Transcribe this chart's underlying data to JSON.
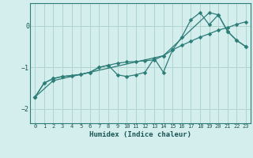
{
  "xlabel": "Humidex (Indice chaleur)",
  "bg_color": "#d4eeed",
  "grid_color": "#aed4d0",
  "line_color": "#2d7d78",
  "xlim": [
    -0.5,
    23.5
  ],
  "ylim": [
    -2.35,
    0.55
  ],
  "yticks": [
    0,
    -1,
    -2
  ],
  "xticks": [
    0,
    1,
    2,
    3,
    4,
    5,
    6,
    7,
    8,
    9,
    10,
    11,
    12,
    13,
    14,
    15,
    16,
    17,
    18,
    19,
    20,
    21,
    22,
    23
  ],
  "line1_x": [
    0,
    1,
    2,
    3,
    4,
    5,
    6,
    7,
    8,
    9,
    10,
    11,
    12,
    13,
    14,
    15,
    16,
    17,
    18,
    19,
    20,
    21,
    22,
    23
  ],
  "line1_y": [
    -1.72,
    -1.38,
    -1.27,
    -1.22,
    -1.2,
    -1.17,
    -1.12,
    -1.0,
    -0.95,
    -0.9,
    -0.87,
    -0.86,
    -0.84,
    -0.82,
    -0.72,
    -0.58,
    -0.47,
    -0.37,
    -0.27,
    -0.19,
    -0.1,
    -0.04,
    0.04,
    0.1
  ],
  "line2_x": [
    0,
    1,
    2,
    3,
    4,
    5,
    6,
    7,
    8,
    9,
    10,
    11,
    12,
    13,
    14,
    15,
    16,
    17,
    18,
    19,
    20,
    21,
    22,
    23
  ],
  "line2_y": [
    -1.72,
    -1.38,
    -1.27,
    -1.22,
    -1.2,
    -1.17,
    -1.12,
    -1.0,
    -0.95,
    -1.18,
    -1.22,
    -1.18,
    -1.12,
    -0.78,
    -1.12,
    -0.58,
    -0.27,
    0.15,
    0.32,
    0.03,
    0.27,
    -0.13,
    -0.35,
    -0.5
  ],
  "line3_x": [
    0,
    2,
    14,
    19,
    20,
    21,
    22,
    23
  ],
  "line3_y": [
    -1.72,
    -1.32,
    -0.72,
    0.32,
    0.27,
    -0.13,
    -0.35,
    -0.5
  ]
}
